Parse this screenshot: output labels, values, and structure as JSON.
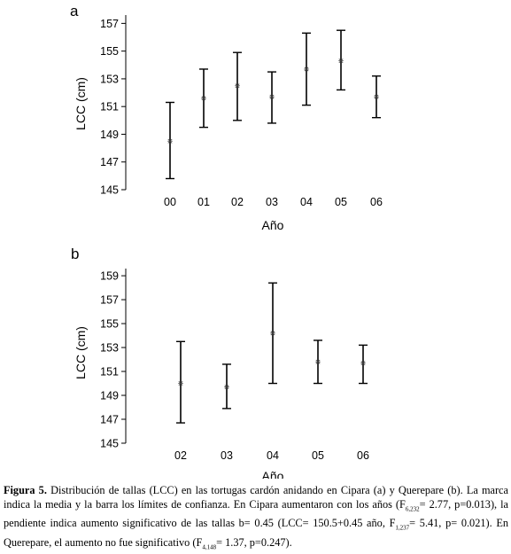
{
  "chart_data": [
    {
      "type": "errorbar",
      "panel_label": "a",
      "xlabel": "Año",
      "ylabel": "LCC (cm)",
      "ylim": [
        145,
        157.6
      ],
      "yticks": [
        145,
        147,
        149,
        151,
        153,
        155,
        157
      ],
      "categories": [
        "00",
        "01",
        "02",
        "03",
        "04",
        "05",
        "06"
      ],
      "mean": [
        148.5,
        151.6,
        152.5,
        151.7,
        153.7,
        154.3,
        151.7
      ],
      "lower": [
        145.8,
        149.5,
        150.0,
        149.8,
        151.1,
        152.2,
        150.2
      ],
      "upper": [
        151.3,
        153.7,
        154.9,
        153.5,
        156.3,
        156.5,
        153.2
      ]
    },
    {
      "type": "errorbar",
      "panel_label": "b",
      "xlabel": "Año",
      "ylabel": "LCC (cm)",
      "ylim": [
        145,
        159.6
      ],
      "yticks": [
        145,
        147,
        149,
        151,
        153,
        155,
        157,
        159
      ],
      "categories": [
        "02",
        "03",
        "04",
        "05",
        "06"
      ],
      "mean": [
        150.0,
        149.7,
        154.2,
        151.8,
        151.7
      ],
      "lower": [
        146.7,
        147.9,
        150.0,
        150.0,
        150.0
      ],
      "upper": [
        153.5,
        151.6,
        158.4,
        153.6,
        153.2
      ]
    }
  ],
  "caption": {
    "lead": "Figura 5.",
    "t1": " Distribución de tallas (LCC) en las tortugas cardón anidando en Cipara (a) y Querepare (b). La marca indica la media y la barra los límites de confianza. En Cipara aumentaron con los años (F",
    "s1": "6,232",
    "t2": "= 2.77, p=0.013), la pendiente indica aumento significativo de las tallas b= 0.45 (LCC= 150.5+0.45 año, F",
    "s2": "1,237",
    "t3": "= 5.41, p= 0.021). En Querepare, el aumento no fue significativo (F",
    "s3": "4,148",
    "t4": "= 1.37, p=0.247)."
  }
}
